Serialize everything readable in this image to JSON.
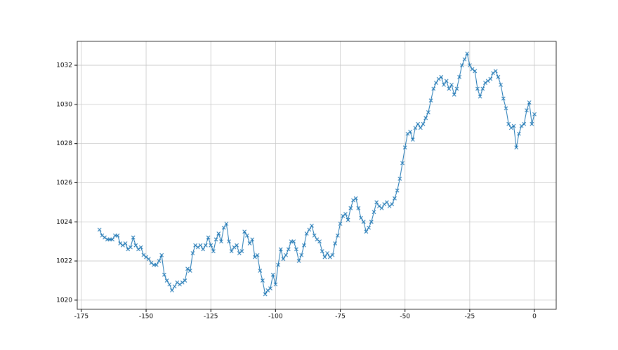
{
  "chart_data": {
    "type": "line",
    "marker": "x",
    "grid": true,
    "x": [
      -168,
      -167,
      -166,
      -165,
      -164,
      -163,
      -162,
      -161,
      -160,
      -159,
      -158,
      -157,
      -156,
      -155,
      -154,
      -153,
      -152,
      -151,
      -150,
      -149,
      -148,
      -147,
      -146,
      -145,
      -144,
      -143,
      -142,
      -141,
      -140,
      -139,
      -138,
      -137,
      -136,
      -135,
      -134,
      -133,
      -132,
      -131,
      -130,
      -129,
      -128,
      -127,
      -126,
      -125,
      -124,
      -123,
      -122,
      -121,
      -120,
      -119,
      -118,
      -117,
      -116,
      -115,
      -114,
      -113,
      -112,
      -111,
      -110,
      -109,
      -108,
      -107,
      -106,
      -105,
      -104,
      -103,
      -102,
      -101,
      -100,
      -99,
      -98,
      -97,
      -96,
      -95,
      -94,
      -93,
      -92,
      -91,
      -90,
      -89,
      -88,
      -87,
      -86,
      -85,
      -84,
      -83,
      -82,
      -81,
      -80,
      -79,
      -78,
      -77,
      -76,
      -75,
      -74,
      -73,
      -72,
      -71,
      -70,
      -69,
      -68,
      -67,
      -66,
      -65,
      -64,
      -63,
      -62,
      -61,
      -60,
      -59,
      -58,
      -57,
      -56,
      -55,
      -54,
      -53,
      -52,
      -51,
      -50,
      -49,
      -48,
      -47,
      -46,
      -45,
      -44,
      -43,
      -42,
      -41,
      -40,
      -39,
      -38,
      -37,
      -36,
      -35,
      -34,
      -33,
      -32,
      -31,
      -30,
      -29,
      -28,
      -27,
      -26,
      -25,
      -24,
      -23,
      -22,
      -21,
      -20,
      -19,
      -18,
      -17,
      -16,
      -15,
      -14,
      -13,
      -12,
      -11,
      -10,
      -9,
      -8,
      -7,
      -6,
      -5,
      -4,
      -3,
      -2,
      -1,
      0
    ],
    "series": [
      {
        "color": "#1f77b4",
        "values": [
          1023.6,
          1023.3,
          1023.2,
          1023.1,
          1023.1,
          1023.1,
          1023.3,
          1023.3,
          1022.9,
          1022.8,
          1022.9,
          1022.6,
          1022.7,
          1023.2,
          1022.8,
          1022.6,
          1022.7,
          1022.3,
          1022.2,
          1022.1,
          1021.9,
          1021.8,
          1021.8,
          1022.0,
          1022.3,
          1021.3,
          1021.0,
          1020.8,
          1020.5,
          1020.7,
          1020.9,
          1020.8,
          1020.9,
          1021.0,
          1021.6,
          1021.5,
          1022.4,
          1022.8,
          1022.7,
          1022.8,
          1022.6,
          1022.8,
          1023.2,
          1022.8,
          1022.5,
          1023.1,
          1023.4,
          1023.0,
          1023.7,
          1023.9,
          1023.0,
          1022.5,
          1022.7,
          1022.8,
          1022.4,
          1022.5,
          1023.5,
          1023.3,
          1022.9,
          1023.1,
          1022.2,
          1022.3,
          1021.5,
          1021.0,
          1020.3,
          1020.5,
          1020.6,
          1021.3,
          1020.8,
          1021.8,
          1022.6,
          1022.1,
          1022.3,
          1022.6,
          1023.0,
          1023.0,
          1022.6,
          1022.0,
          1022.3,
          1022.8,
          1023.4,
          1023.6,
          1023.8,
          1023.3,
          1023.1,
          1023.0,
          1022.5,
          1022.2,
          1022.4,
          1022.2,
          1022.3,
          1022.9,
          1023.3,
          1023.9,
          1024.3,
          1024.4,
          1024.1,
          1024.7,
          1025.1,
          1025.2,
          1024.7,
          1024.2,
          1024.0,
          1023.5,
          1023.7,
          1024.0,
          1024.5,
          1025.0,
          1024.8,
          1024.7,
          1024.9,
          1025.0,
          1024.8,
          1024.9,
          1025.2,
          1025.6,
          1026.2,
          1027.0,
          1027.8,
          1028.5,
          1028.6,
          1028.2,
          1028.8,
          1029.0,
          1028.8,
          1029.0,
          1029.3,
          1029.6,
          1030.2,
          1030.8,
          1031.1,
          1031.3,
          1031.4,
          1031.0,
          1031.2,
          1030.8,
          1031.0,
          1030.5,
          1030.8,
          1031.4,
          1032.0,
          1032.3,
          1032.6,
          1032.0,
          1031.8,
          1031.7,
          1030.8,
          1030.4,
          1030.8,
          1031.1,
          1031.2,
          1031.3,
          1031.6,
          1031.7,
          1031.4,
          1031.0,
          1030.3,
          1029.8,
          1029.0,
          1028.8,
          1028.9,
          1027.8,
          1028.5,
          1028.9,
          1029.0,
          1029.7,
          1030.1,
          1029.0,
          1029.5
        ]
      }
    ],
    "xlim": [
      -176.6,
      8.4
    ],
    "xticks": [
      -175,
      -150,
      -125,
      -100,
      -75,
      -50,
      -25,
      0
    ],
    "ylim": [
      1019.53,
      1033.22
    ],
    "yticks": [
      1020,
      1022,
      1024,
      1026,
      1028,
      1030,
      1032
    ]
  }
}
